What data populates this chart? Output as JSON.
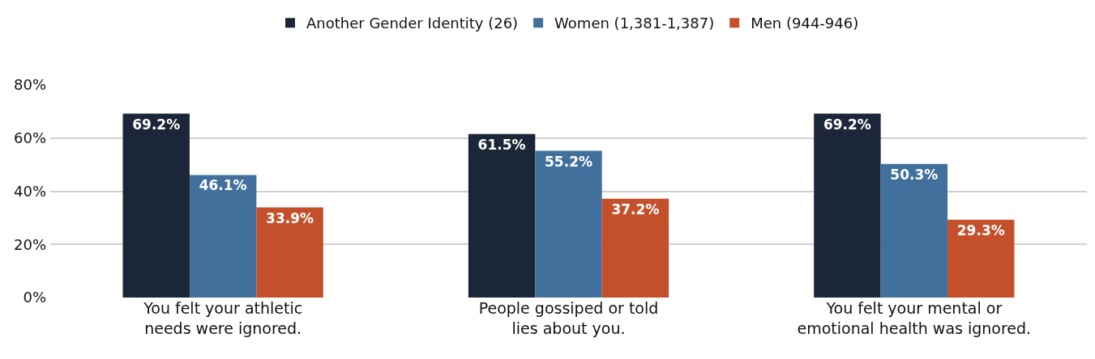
{
  "chart_data": {
    "type": "bar",
    "categories": [
      "You felt your athletic needs were ignored.",
      "People gossiped or told lies about you.",
      "You felt your mental or emotional health was ignored."
    ],
    "series": [
      {
        "name": "Another Gender Identity (26)",
        "color": "#1b2638",
        "values": [
          69.2,
          61.5,
          69.2
        ],
        "value_labels": [
          "69.2%",
          "61.5%",
          "69.2%"
        ]
      },
      {
        "name": "Women (1,381-1,387)",
        "color": "#41709c",
        "values": [
          46.1,
          55.2,
          50.3
        ],
        "value_labels": [
          "46.1%",
          "55.2%",
          "50.3%"
        ]
      },
      {
        "name": "Men (944-946)",
        "color": "#c4502b",
        "values": [
          33.9,
          37.2,
          29.3
        ],
        "value_labels": [
          "33.9%",
          "37.2%",
          "29.3%"
        ]
      }
    ],
    "ylim": [
      0,
      80
    ],
    "yticks": [
      {
        "value": 0,
        "label": "0%"
      },
      {
        "value": 20,
        "label": "20%"
      },
      {
        "value": 40,
        "label": "40%"
      },
      {
        "value": 60,
        "label": "60%"
      },
      {
        "value": 80,
        "label": "80%"
      }
    ],
    "grid": "y",
    "legend": "top"
  }
}
